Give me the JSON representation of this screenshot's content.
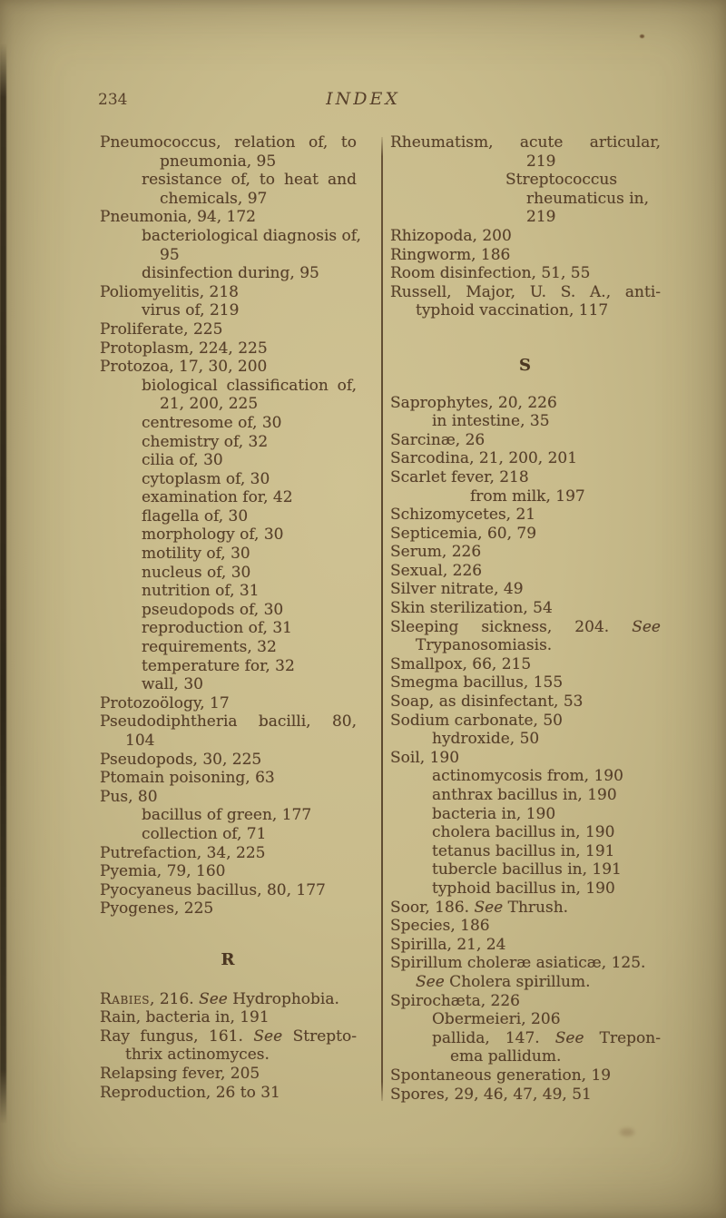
{
  "page": {
    "number": "234",
    "title": "INDEX"
  },
  "colors": {
    "paper": "#c9bc8c",
    "ink": "#57402a",
    "divider": "#4c3822"
  },
  "columns": {
    "left": {
      "sections": [
        {
          "heading": "",
          "lines": [
            {
              "i": 0,
              "j": true,
              "s": [
                [
                  "n",
                  "Pneumococcus, relation of, to"
                ]
              ]
            },
            {
              "i": 3,
              "s": [
                [
                  "n",
                  "pneumonia, 95"
                ]
              ]
            },
            {
              "i": 2,
              "j": true,
              "s": [
                [
                  "n",
                  "resistance of, to heat and"
                ]
              ]
            },
            {
              "i": 3,
              "s": [
                [
                  "n",
                  "chemicals, 97"
                ]
              ]
            },
            {
              "i": 0,
              "s": [
                [
                  "n",
                  "Pneumonia, 94, 172"
                ]
              ]
            },
            {
              "i": 2,
              "s": [
                [
                  "n",
                  "bacteriological diagnosis of,"
                ]
              ]
            },
            {
              "i": 3,
              "s": [
                [
                  "n",
                  "95"
                ]
              ]
            },
            {
              "i": 2,
              "s": [
                [
                  "n",
                  "disinfection during, 95"
                ]
              ]
            },
            {
              "i": 0,
              "s": [
                [
                  "n",
                  "Poliomyelitis, 218"
                ]
              ]
            },
            {
              "i": 2,
              "s": [
                [
                  "n",
                  "virus of, 219"
                ]
              ]
            },
            {
              "i": 0,
              "s": [
                [
                  "n",
                  "Proliferate, 225"
                ]
              ]
            },
            {
              "i": 0,
              "s": [
                [
                  "n",
                  "Protoplasm, 224, 225"
                ]
              ]
            },
            {
              "i": 0,
              "s": [
                [
                  "n",
                  "Protozoa, 17, 30, 200"
                ]
              ]
            },
            {
              "i": 2,
              "j": true,
              "s": [
                [
                  "n",
                  "biological classification of,"
                ]
              ]
            },
            {
              "i": 3,
              "s": [
                [
                  "n",
                  "21, 200, 225"
                ]
              ]
            },
            {
              "i": 2,
              "s": [
                [
                  "n",
                  "centresome of, 30"
                ]
              ]
            },
            {
              "i": 2,
              "s": [
                [
                  "n",
                  "chemistry of, 32"
                ]
              ]
            },
            {
              "i": 2,
              "s": [
                [
                  "n",
                  "cilia of, 30"
                ]
              ]
            },
            {
              "i": 2,
              "s": [
                [
                  "n",
                  "cytoplasm of, 30"
                ]
              ]
            },
            {
              "i": 2,
              "s": [
                [
                  "n",
                  "examination for, 42"
                ]
              ]
            },
            {
              "i": 2,
              "s": [
                [
                  "n",
                  "flagella of, 30"
                ]
              ]
            },
            {
              "i": 2,
              "s": [
                [
                  "n",
                  "morphology of, 30"
                ]
              ]
            },
            {
              "i": 2,
              "s": [
                [
                  "n",
                  "motility of, 30"
                ]
              ]
            },
            {
              "i": 2,
              "s": [
                [
                  "n",
                  "nucleus of, 30"
                ]
              ]
            },
            {
              "i": 2,
              "s": [
                [
                  "n",
                  "nutrition of, 31"
                ]
              ]
            },
            {
              "i": 2,
              "s": [
                [
                  "n",
                  "pseudopods of, 30"
                ]
              ]
            },
            {
              "i": 2,
              "s": [
                [
                  "n",
                  "reproduction of, 31"
                ]
              ]
            },
            {
              "i": 2,
              "s": [
                [
                  "n",
                  "requirements, 32"
                ]
              ]
            },
            {
              "i": 2,
              "s": [
                [
                  "n",
                  "temperature for, 32"
                ]
              ]
            },
            {
              "i": 2,
              "s": [
                [
                  "n",
                  "wall, 30"
                ]
              ]
            },
            {
              "i": 0,
              "s": [
                [
                  "n",
                  "Protozoölogy, 17"
                ]
              ]
            },
            {
              "i": 0,
              "j": true,
              "s": [
                [
                  "n",
                  "Pseudodiphtheria bacilli, 80,"
                ]
              ]
            },
            {
              "i": 1,
              "s": [
                [
                  "n",
                  "104"
                ]
              ]
            },
            {
              "i": 0,
              "s": [
                [
                  "n",
                  "Pseudopods, 30, 225"
                ]
              ]
            },
            {
              "i": 0,
              "s": [
                [
                  "n",
                  "Ptomain poisoning, 63"
                ]
              ]
            },
            {
              "i": 0,
              "s": [
                [
                  "n",
                  "Pus, 80"
                ]
              ]
            },
            {
              "i": 2,
              "s": [
                [
                  "n",
                  "bacillus of green, 177"
                ]
              ]
            },
            {
              "i": 2,
              "s": [
                [
                  "n",
                  "collection of, 71"
                ]
              ]
            },
            {
              "i": 0,
              "s": [
                [
                  "n",
                  "Putrefaction, 34, 225"
                ]
              ]
            },
            {
              "i": 0,
              "s": [
                [
                  "n",
                  "Pyemia, 79, 160"
                ]
              ]
            },
            {
              "i": 0,
              "s": [
                [
                  "n",
                  "Pyocyaneus bacillus, 80, 177"
                ]
              ]
            },
            {
              "i": 0,
              "s": [
                [
                  "n",
                  "Pyogenes, 225"
                ]
              ]
            }
          ]
        },
        {
          "heading": "R",
          "lines": [
            {
              "i": 0,
              "s": [
                [
                  "sc",
                  "Rabies"
                ],
                [
                  "n",
                  ", 216. "
                ],
                [
                  "i",
                  "See"
                ],
                [
                  "n",
                  " Hydrophobia."
                ]
              ]
            },
            {
              "i": 0,
              "s": [
                [
                  "n",
                  "Rain, bacteria in, 191"
                ]
              ]
            },
            {
              "i": 0,
              "j": true,
              "s": [
                [
                  "n",
                  "Ray fungus, 161.  "
                ],
                [
                  "i",
                  "See"
                ],
                [
                  "n",
                  " Strepto-"
                ]
              ]
            },
            {
              "i": 1,
              "s": [
                [
                  "n",
                  "thrix actinomyces."
                ]
              ]
            },
            {
              "i": 0,
              "s": [
                [
                  "n",
                  "Relapsing fever, 205"
                ]
              ]
            },
            {
              "i": 0,
              "s": [
                [
                  "n",
                  "Reproduction, 26 to 31"
                ]
              ]
            }
          ]
        }
      ]
    },
    "right": {
      "sections": [
        {
          "heading": "",
          "lines": [
            {
              "i": 0,
              "j": true,
              "s": [
                [
                  "n",
                  "Rheumatism, acute articular,"
                ]
              ]
            },
            {
              "i": 6,
              "s": [
                [
                  "n",
                  "219"
                ]
              ]
            },
            {
              "i": 5,
              "s": [
                [
                  "n",
                  "Streptococcus"
                ]
              ]
            },
            {
              "i": 6,
              "s": [
                [
                  "n",
                  "rheumaticus in,"
                ]
              ]
            },
            {
              "i": 6,
              "s": [
                [
                  "n",
                  "219"
                ]
              ]
            },
            {
              "i": 0,
              "s": [
                [
                  "n",
                  "Rhizopoda, 200"
                ]
              ]
            },
            {
              "i": 0,
              "s": [
                [
                  "n",
                  "Ringworm, 186"
                ]
              ]
            },
            {
              "i": 0,
              "s": [
                [
                  "n",
                  "Room disinfection, 51, 55"
                ]
              ]
            },
            {
              "i": 0,
              "j": true,
              "s": [
                [
                  "n",
                  "Russell, Major, U. S. A., anti-"
                ]
              ]
            },
            {
              "i": 1,
              "s": [
                [
                  "n",
                  "typhoid vaccination, 117"
                ]
              ]
            }
          ]
        },
        {
          "heading": "S",
          "lines": [
            {
              "i": 0,
              "s": [
                [
                  "n",
                  "Saprophytes, 20, 226"
                ]
              ]
            },
            {
              "i": 2,
              "s": [
                [
                  "n",
                  "in intestine, 35"
                ]
              ]
            },
            {
              "i": 0,
              "s": [
                [
                  "n",
                  "Sarcinæ, 26"
                ]
              ]
            },
            {
              "i": 0,
              "s": [
                [
                  "n",
                  "Sarcodina, 21, 200, 201"
                ]
              ]
            },
            {
              "i": 0,
              "s": [
                [
                  "n",
                  "Scarlet fever, 218"
                ]
              ]
            },
            {
              "i": 4,
              "s": [
                [
                  "n",
                  "from milk, 197"
                ]
              ]
            },
            {
              "i": 0,
              "s": [
                [
                  "n",
                  "Schizomycetes, 21"
                ]
              ]
            },
            {
              "i": 0,
              "s": [
                [
                  "n",
                  "Septicemia, 60, 79"
                ]
              ]
            },
            {
              "i": 0,
              "s": [
                [
                  "n",
                  "Serum, 226"
                ]
              ]
            },
            {
              "i": 0,
              "s": [
                [
                  "n",
                  "Sexual, 226"
                ]
              ]
            },
            {
              "i": 0,
              "s": [
                [
                  "n",
                  "Silver nitrate, 49"
                ]
              ]
            },
            {
              "i": 0,
              "s": [
                [
                  "n",
                  "Skin sterilization, 54"
                ]
              ]
            },
            {
              "i": 0,
              "j": true,
              "s": [
                [
                  "n",
                  "Sleeping sickness, 204.  "
                ],
                [
                  "i",
                  "See"
                ]
              ]
            },
            {
              "i": 1,
              "s": [
                [
                  "n",
                  "Trypanosomiasis."
                ]
              ]
            },
            {
              "i": 0,
              "s": [
                [
                  "n",
                  "Smallpox, 66, 215"
                ]
              ]
            },
            {
              "i": 0,
              "s": [
                [
                  "n",
                  "Smegma bacillus, 155"
                ]
              ]
            },
            {
              "i": 0,
              "s": [
                [
                  "n",
                  "Soap, as disinfectant, 53"
                ]
              ]
            },
            {
              "i": 0,
              "s": [
                [
                  "n",
                  "Sodium carbonate, 50"
                ]
              ]
            },
            {
              "i": 2,
              "s": [
                [
                  "n",
                  "hydroxide, 50"
                ]
              ]
            },
            {
              "i": 0,
              "s": [
                [
                  "n",
                  "Soil, 190"
                ]
              ]
            },
            {
              "i": 2,
              "s": [
                [
                  "n",
                  "actinomycosis from, 190"
                ]
              ]
            },
            {
              "i": 2,
              "s": [
                [
                  "n",
                  "anthrax bacillus in, 190"
                ]
              ]
            },
            {
              "i": 2,
              "s": [
                [
                  "n",
                  "bacteria in, 190"
                ]
              ]
            },
            {
              "i": 2,
              "s": [
                [
                  "n",
                  "cholera bacillus in, 190"
                ]
              ]
            },
            {
              "i": 2,
              "s": [
                [
                  "n",
                  "tetanus bacillus in, 191"
                ]
              ]
            },
            {
              "i": 2,
              "s": [
                [
                  "n",
                  "tubercle bacillus in, 191"
                ]
              ]
            },
            {
              "i": 2,
              "s": [
                [
                  "n",
                  "typhoid bacillus in, 190"
                ]
              ]
            },
            {
              "i": 0,
              "s": [
                [
                  "n",
                  "Soor, 186.  "
                ],
                [
                  "i",
                  "See"
                ],
                [
                  "n",
                  " Thrush."
                ]
              ]
            },
            {
              "i": 0,
              "s": [
                [
                  "n",
                  "Species, 186"
                ]
              ]
            },
            {
              "i": 0,
              "s": [
                [
                  "n",
                  "Spirilla, 21, 24"
                ]
              ]
            },
            {
              "i": 0,
              "s": [
                [
                  "n",
                  "Spirillum choleræ asiaticæ, 125."
                ]
              ]
            },
            {
              "i": 1,
              "s": [
                [
                  "i",
                  "See"
                ],
                [
                  "n",
                  " Cholera spirillum."
                ]
              ]
            },
            {
              "i": 0,
              "s": [
                [
                  "n",
                  "Spirochæta, 226"
                ]
              ]
            },
            {
              "i": 2,
              "s": [
                [
                  "n",
                  "Obermeieri, 206"
                ]
              ]
            },
            {
              "i": 2,
              "j": true,
              "s": [
                [
                  "n",
                  "pallida, 147.  "
                ],
                [
                  "i",
                  "See"
                ],
                [
                  "n",
                  " Trepon-"
                ]
              ]
            },
            {
              "i": 3,
              "s": [
                [
                  "n",
                  "ema pallidum."
                ]
              ]
            },
            {
              "i": 0,
              "s": [
                [
                  "n",
                  "Spontaneous generation, 19"
                ]
              ]
            },
            {
              "i": 0,
              "s": [
                [
                  "n",
                  "Spores, 29, 46, 47, 49, 51"
                ]
              ]
            }
          ]
        }
      ]
    }
  }
}
